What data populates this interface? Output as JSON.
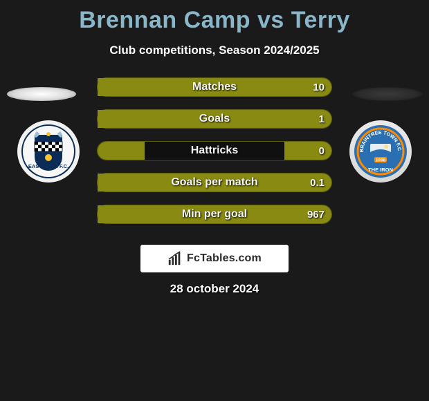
{
  "title": "Brennan Camp vs Terry",
  "subtitle": "Club competitions, Season 2024/2025",
  "date": "28 october 2024",
  "logo_text": "FcTables.com",
  "colors": {
    "bg": "#1a1a1a",
    "title": "#89b6c9",
    "bar_border": "#5e600e",
    "bar_fill": "#888a12",
    "bar_track": "#101010"
  },
  "crests": {
    "left_name": "Eastleigh FC",
    "right_name": "Braintree Town FC"
  },
  "bars": [
    {
      "label": "Matches",
      "left": "",
      "right": "10",
      "left_pct": 0,
      "right_pct": 100
    },
    {
      "label": "Goals",
      "left": "",
      "right": "1",
      "left_pct": 0,
      "right_pct": 100
    },
    {
      "label": "Hattricks",
      "left": "",
      "right": "0",
      "left_pct": 20,
      "right_pct": 20
    },
    {
      "label": "Goals per match",
      "left": "",
      "right": "0.1",
      "left_pct": 0,
      "right_pct": 100
    },
    {
      "label": "Min per goal",
      "left": "",
      "right": "967",
      "left_pct": 0,
      "right_pct": 100
    }
  ]
}
